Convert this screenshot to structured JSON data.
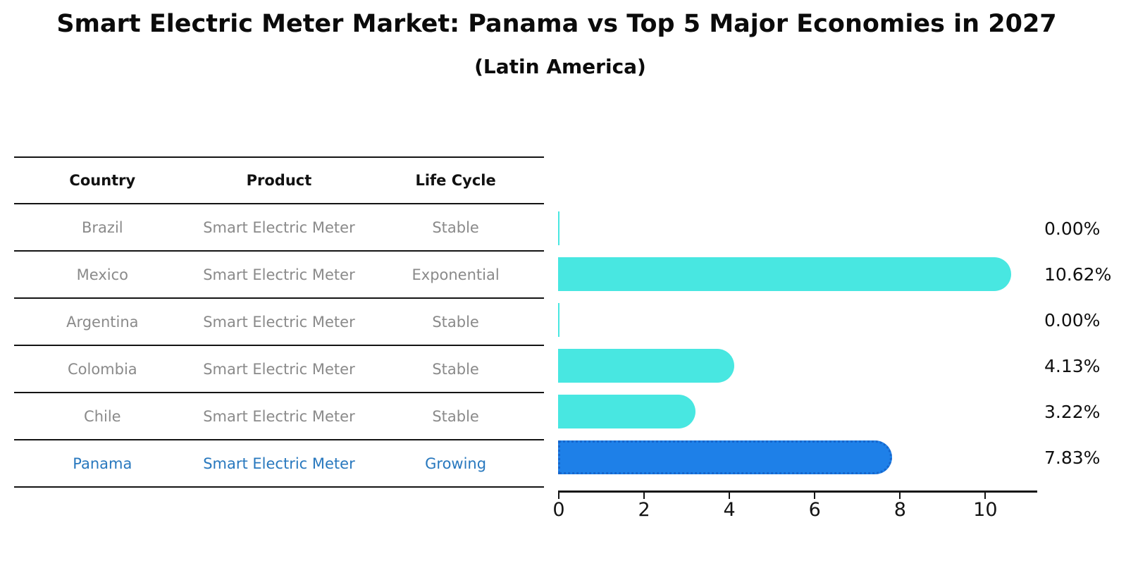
{
  "page": {
    "title": "Smart Electric Meter Market: Panama vs Top 5 Major Economies in 2027",
    "subtitle": "(Latin America)"
  },
  "colors": {
    "bar_default": "#48e7e1",
    "bar_highlight": "#1e80e8",
    "bar_highlight_border": "#1666cc",
    "highlight_text": "#2878be",
    "row_text": "#8a8a8a",
    "rule_color": "#141414"
  },
  "table": {
    "headers": [
      "Country",
      "Product",
      "Life Cycle"
    ],
    "rows": [
      {
        "country": "Brazil",
        "product": "Smart Electric Meter",
        "life_cycle": "Stable",
        "highlighted": false
      },
      {
        "country": "Mexico",
        "product": "Smart Electric Meter",
        "life_cycle": "Exponential",
        "highlighted": false
      },
      {
        "country": "Argentina",
        "product": "Smart Electric Meter",
        "life_cycle": "Stable",
        "highlighted": false
      },
      {
        "country": "Colombia",
        "product": "Smart Electric Meter",
        "life_cycle": "Stable",
        "highlighted": false
      },
      {
        "country": "Chile",
        "product": "Smart Electric Meter",
        "life_cycle": "Stable",
        "highlighted": false
      },
      {
        "country": "Panama",
        "product": "Smart Electric Meter",
        "life_cycle": "Growing",
        "highlighted": true
      }
    ]
  },
  "chart_data": {
    "type": "bar",
    "orientation": "horizontal",
    "title": "Smart Electric Meter Market: Panama vs Top 5 Major Economies in 2027",
    "subtitle": "(Latin America)",
    "categories": [
      "Brazil",
      "Mexico",
      "Argentina",
      "Colombia",
      "Chile",
      "Panama"
    ],
    "values": [
      0.0,
      10.62,
      0.0,
      4.13,
      3.22,
      7.83
    ],
    "value_labels": [
      "0.00%",
      "10.62%",
      "0.00%",
      "4.13%",
      "3.22%",
      "7.83%"
    ],
    "highlight_category": "Panama",
    "xlabel": "",
    "ylabel": "",
    "xlim": [
      0,
      11.2
    ],
    "x_ticks": [
      0,
      2,
      4,
      6,
      8,
      10
    ],
    "x_tick_labels": [
      "0",
      "2",
      "4",
      "6",
      "8",
      "10"
    ],
    "grid": false,
    "legend": false
  }
}
